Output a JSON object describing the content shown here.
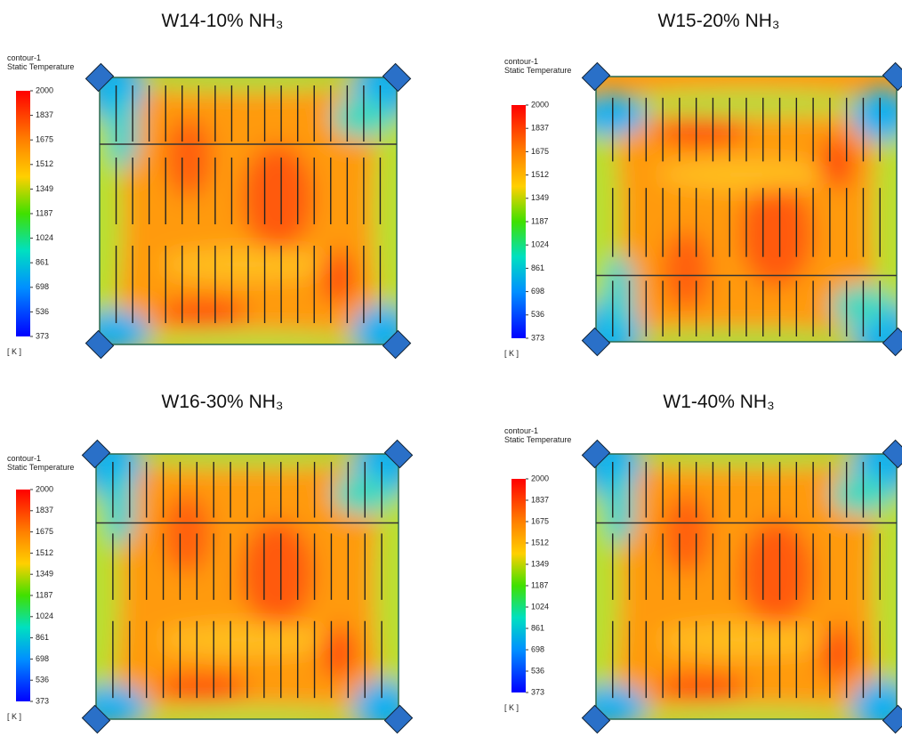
{
  "panels": [
    {
      "title": "W14-10% NH₃",
      "legend_name": "contour-1",
      "legend_variable": "Static Temperature",
      "ticks": [
        "2000",
        "1837",
        "1675",
        "1512",
        "1349",
        "1187",
        "1024",
        "861",
        "698",
        "536",
        "373"
      ],
      "unit": "[ K ]"
    },
    {
      "title": "W15-20% NH₃",
      "legend_name": "contour-1",
      "legend_variable": "Static Temperature",
      "ticks": [
        "2000",
        "1837",
        "1675",
        "1512",
        "1349",
        "1187",
        "1024",
        "861",
        "698",
        "536",
        "373"
      ],
      "unit": "[ K ]"
    },
    {
      "title": "W16-30% NH₃",
      "legend_name": "contour-1",
      "legend_variable": "Static Temperature",
      "ticks": [
        "2000",
        "1837",
        "1675",
        "1512",
        "1349",
        "1187",
        "1024",
        "861",
        "698",
        "536",
        "373"
      ],
      "unit": "[ K ]"
    },
    {
      "title": "W1-40% NH₃",
      "legend_name": "contour-1",
      "legend_variable": "Static Temperature",
      "ticks": [
        "2000",
        "1837",
        "1675",
        "1512",
        "1349",
        "1187",
        "1024",
        "861",
        "698",
        "536",
        "373"
      ],
      "unit": "[ K ]"
    }
  ]
}
